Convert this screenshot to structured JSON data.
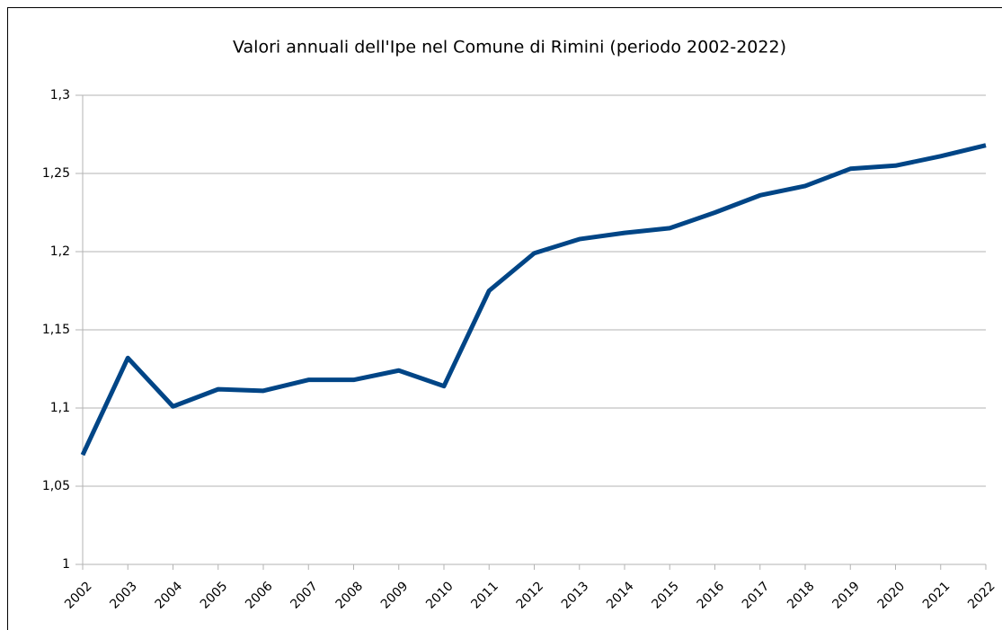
{
  "chart_data": {
    "type": "line",
    "title": "Valori annuali dell'Ipe nel Comune di Rimini (periodo 2002-2022)",
    "categories": [
      "2002",
      "2003",
      "2004",
      "2005",
      "2006",
      "2007",
      "2008",
      "2009",
      "2010",
      "2011",
      "2012",
      "2013",
      "2014",
      "2015",
      "2016",
      "2017",
      "2018",
      "2019",
      "2020",
      "2021",
      "2022"
    ],
    "series": [
      {
        "name": "Ipe",
        "color": "#004586",
        "values": [
          1.07,
          1.132,
          1.101,
          1.112,
          1.111,
          1.118,
          1.118,
          1.124,
          1.114,
          1.175,
          1.199,
          1.208,
          1.212,
          1.215,
          1.225,
          1.236,
          1.242,
          1.253,
          1.255,
          1.261,
          1.268
        ]
      }
    ],
    "ylim": [
      1,
      1.3
    ],
    "yticks": [
      1,
      {
        "value": 1.05,
        "label": "1,05"
      },
      {
        "value": 1.1,
        "label": "1,1"
      },
      {
        "value": 1.15,
        "label": "1,15"
      },
      {
        "value": 1.2,
        "label": "1,2"
      },
      {
        "value": 1.25,
        "label": "1,25"
      },
      {
        "value": 1.3,
        "label": "1,3"
      }
    ],
    "grid": true
  }
}
